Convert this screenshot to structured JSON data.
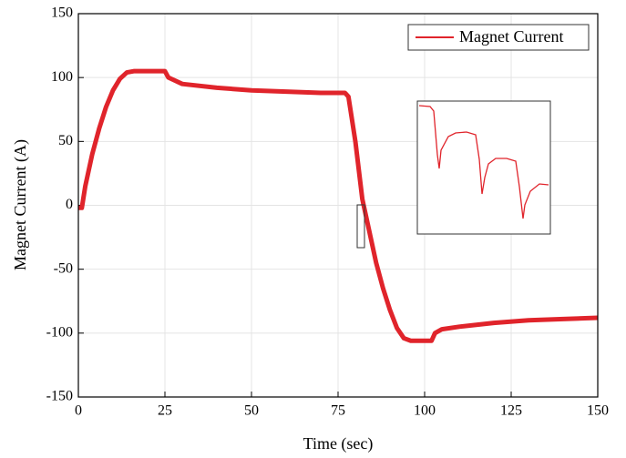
{
  "chart_data": {
    "type": "line",
    "x_label": "Time (sec)",
    "y_label": "Magnet Current (A)",
    "series": [
      {
        "name": "Magnet Current",
        "color": "#e0242b",
        "x": [
          0,
          1,
          2,
          4,
          6,
          8,
          10,
          12,
          14,
          16,
          20,
          25,
          26,
          30,
          40,
          50,
          60,
          70,
          77,
          78,
          80,
          82,
          84,
          86,
          88,
          90,
          92,
          94,
          96,
          100,
          102,
          103,
          105,
          110,
          120,
          130,
          140,
          150
        ],
        "values": [
          -2,
          -2,
          15,
          40,
          60,
          77,
          90,
          99,
          104,
          105,
          105,
          105,
          100,
          95,
          92,
          90,
          89,
          88,
          88,
          85,
          50,
          5,
          -20,
          -45,
          -65,
          -82,
          -96,
          -104,
          -106,
          -106,
          -106,
          -100,
          -97,
          -95,
          -92,
          -90,
          -89,
          -88
        ]
      }
    ],
    "xlim": [
      0,
      150
    ],
    "xticks": [
      0,
      25,
      50,
      75,
      100,
      125,
      150
    ],
    "ylim": [
      -150,
      150
    ],
    "yticks": [
      -150,
      -100,
      -50,
      0,
      50,
      100,
      150
    ],
    "grid": true,
    "legend": "upper right"
  }
}
